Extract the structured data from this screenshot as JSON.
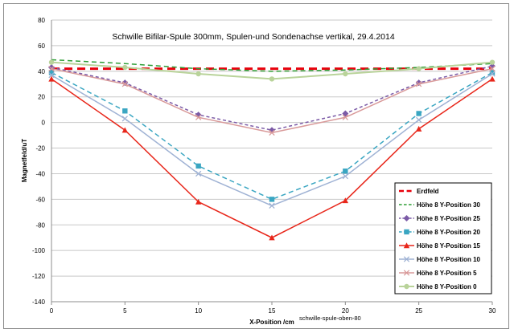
{
  "chart_data": {
    "type": "line",
    "title": "Schwille Bifilar-Spule 300mm,  Spulen-und Sondenachse vertikal, 29.4.2014",
    "xlabel": "X-Position /cm",
    "ylabel": "Magnetfeld/uT",
    "annotation": "schwille-spule-oben-80",
    "xlim": [
      0,
      30
    ],
    "ylim": [
      -140,
      80
    ],
    "x_ticks": [
      0,
      5,
      10,
      15,
      20,
      25,
      30
    ],
    "y_ticks": [
      80,
      60,
      40,
      20,
      0,
      -20,
      -40,
      -60,
      -80,
      -100,
      -120,
      -140
    ],
    "grid": true,
    "legend_position": "bottom-right",
    "x": [
      0,
      5,
      10,
      15,
      20,
      25,
      30
    ],
    "series": [
      {
        "name": "Erdfeld",
        "color": "#e8000b",
        "dash": "10,6",
        "width": 3,
        "marker": "none",
        "values": [
          42,
          42,
          42,
          42,
          42,
          42,
          42
        ]
      },
      {
        "name": "Höhe 8 Y-Position 30",
        "color": "#2e9e36",
        "dash": "6,4",
        "width": 1.5,
        "marker": "none",
        "values": [
          49,
          46,
          42,
          40,
          41,
          43,
          46
        ]
      },
      {
        "name": "Höhe 8 Y-Position 25",
        "color": "#7b5aa6",
        "dash": "4,3",
        "width": 1.5,
        "marker": "diamond",
        "values": [
          43,
          31,
          6,
          -6,
          7,
          31,
          44
        ]
      },
      {
        "name": "Höhe 8 Y-Position 20",
        "color": "#3aa6c2",
        "dash": "6,4",
        "width": 1.5,
        "marker": "square",
        "values": [
          39,
          9,
          -34,
          -60,
          -38,
          7,
          39
        ]
      },
      {
        "name": "Höhe 8 Y-Position 15",
        "color": "#e8271b",
        "dash": "",
        "width": 1.5,
        "marker": "triangle",
        "values": [
          34,
          -6,
          -62,
          -90,
          -61,
          -5,
          34
        ]
      },
      {
        "name": "Höhe 8 Y-Position 10",
        "color": "#9fb2d4",
        "dash": "",
        "width": 1.5,
        "marker": "x",
        "values": [
          37,
          3,
          -40,
          -65,
          -42,
          2,
          38
        ]
      },
      {
        "name": "Höhe 8 Y-Position 5",
        "color": "#d99a9a",
        "dash": "",
        "width": 1.5,
        "marker": "x",
        "values": [
          42,
          30,
          4,
          -8,
          4,
          30,
          42
        ]
      },
      {
        "name": "Höhe 8 Y-Position 0",
        "color": "#b9d39a",
        "dash": "",
        "width": 2,
        "marker": "circle",
        "values": [
          47,
          43,
          38,
          34,
          38,
          42,
          47
        ]
      }
    ]
  }
}
